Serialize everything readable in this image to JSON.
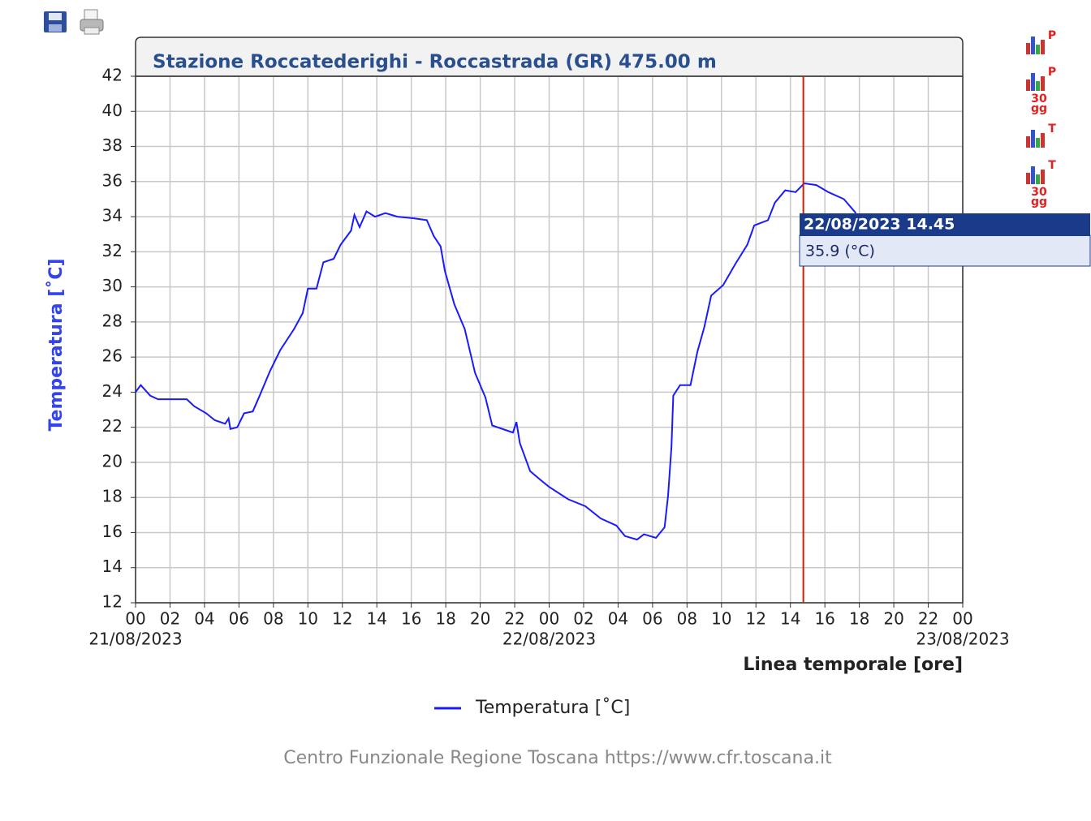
{
  "chart_data": {
    "type": "line",
    "title": "Stazione Roccatederighi - Roccastrada (GR) 475.00 m",
    "ylabel": "Temperatura [˚C]",
    "xlabel": "Linea temporale [ore]",
    "credit": "Centro Funzionale Regione Toscana https://www.cfr.toscana.it",
    "xlim": [
      0,
      48
    ],
    "ylim": [
      12,
      42
    ],
    "xticks": [
      {
        "value": 0,
        "label": "00"
      },
      {
        "value": 2,
        "label": "02"
      },
      {
        "value": 4,
        "label": "04"
      },
      {
        "value": 6,
        "label": "06"
      },
      {
        "value": 8,
        "label": "08"
      },
      {
        "value": 10,
        "label": "10"
      },
      {
        "value": 12,
        "label": "12"
      },
      {
        "value": 14,
        "label": "14"
      },
      {
        "value": 16,
        "label": "16"
      },
      {
        "value": 18,
        "label": "18"
      },
      {
        "value": 20,
        "label": "20"
      },
      {
        "value": 22,
        "label": "22"
      },
      {
        "value": 24,
        "label": "00"
      },
      {
        "value": 26,
        "label": "02"
      },
      {
        "value": 28,
        "label": "04"
      },
      {
        "value": 30,
        "label": "06"
      },
      {
        "value": 32,
        "label": "08"
      },
      {
        "value": 34,
        "label": "10"
      },
      {
        "value": 36,
        "label": "12"
      },
      {
        "value": 38,
        "label": "14"
      },
      {
        "value": 40,
        "label": "16"
      },
      {
        "value": 42,
        "label": "18"
      },
      {
        "value": 44,
        "label": "20"
      },
      {
        "value": 46,
        "label": "22"
      },
      {
        "value": 48,
        "label": "00"
      }
    ],
    "date_ticks": [
      {
        "value": 0,
        "label": "21/08/2023"
      },
      {
        "value": 24,
        "label": "22/08/2023"
      },
      {
        "value": 48,
        "label": "23/08/2023"
      }
    ],
    "yticks": [
      12,
      14,
      16,
      18,
      20,
      22,
      24,
      26,
      28,
      30,
      32,
      34,
      36,
      38,
      40,
      42
    ],
    "grid": true,
    "x": [
      0,
      0.3,
      0.85,
      1.3,
      2.97,
      3.4,
      4.1,
      4.6,
      5.2,
      5.4,
      5.5,
      5.9,
      6.3,
      6.8,
      7.2,
      7.8,
      8.4,
      9.2,
      9.7,
      10.0,
      10.5,
      10.9,
      11.5,
      11.9,
      12.5,
      12.7,
      13.0,
      13.4,
      13.9,
      14.5,
      15.2,
      16.2,
      16.9,
      17.3,
      17.7,
      17.95,
      18.5,
      19.1,
      19.7,
      20.3,
      20.7,
      21.6,
      21.9,
      22.1,
      22.3,
      22.9,
      23.5,
      24.0,
      25.1,
      26.1,
      27.0,
      27.9,
      28.4,
      29.1,
      29.5,
      30.2,
      30.7,
      30.9,
      31.1,
      31.2,
      31.6,
      32.2,
      32.6,
      33.0,
      33.4,
      34.1,
      34.8,
      35.5,
      35.9,
      36.7,
      37.1,
      37.7,
      38.3,
      38.8,
      39.5,
      40.2,
      41.1,
      41.8
    ],
    "series": [
      {
        "name": "Temperatura [˚C]",
        "color": "#1a1aff",
        "values": [
          24.0,
          24.4,
          23.8,
          23.6,
          23.6,
          23.2,
          22.8,
          22.4,
          22.2,
          22.5,
          21.9,
          22.0,
          22.8,
          22.9,
          23.8,
          25.2,
          26.4,
          27.6,
          28.5,
          29.9,
          29.9,
          31.4,
          31.6,
          32.4,
          33.2,
          34.1,
          33.4,
          34.3,
          34.0,
          34.2,
          34.0,
          33.9,
          33.8,
          32.9,
          32.3,
          30.9,
          29.0,
          27.6,
          25.1,
          23.7,
          22.1,
          21.8,
          21.7,
          22.3,
          21.1,
          19.5,
          19.0,
          18.6,
          17.9,
          17.5,
          16.8,
          16.4,
          15.8,
          15.6,
          15.9,
          15.7,
          16.3,
          18.1,
          20.9,
          23.8,
          24.4,
          24.4,
          26.3,
          27.7,
          29.5,
          30.1,
          31.3,
          32.4,
          33.5,
          33.8,
          34.8,
          35.5,
          35.4,
          35.9,
          35.8,
          35.4,
          35.0,
          34.2
        ]
      }
    ],
    "marker": {
      "x": 38.75,
      "color": "#cc2200"
    },
    "tooltip": {
      "title": "22/08/2023 14.45",
      "text": "35.9 (°C)"
    }
  },
  "sidebar": {
    "icons": [
      {
        "letter": "P"
      },
      {
        "letter": "P",
        "days": "30",
        "unit": "gg"
      },
      {
        "letter": "T"
      },
      {
        "letter": "T",
        "days": "30",
        "unit": "gg"
      }
    ]
  }
}
